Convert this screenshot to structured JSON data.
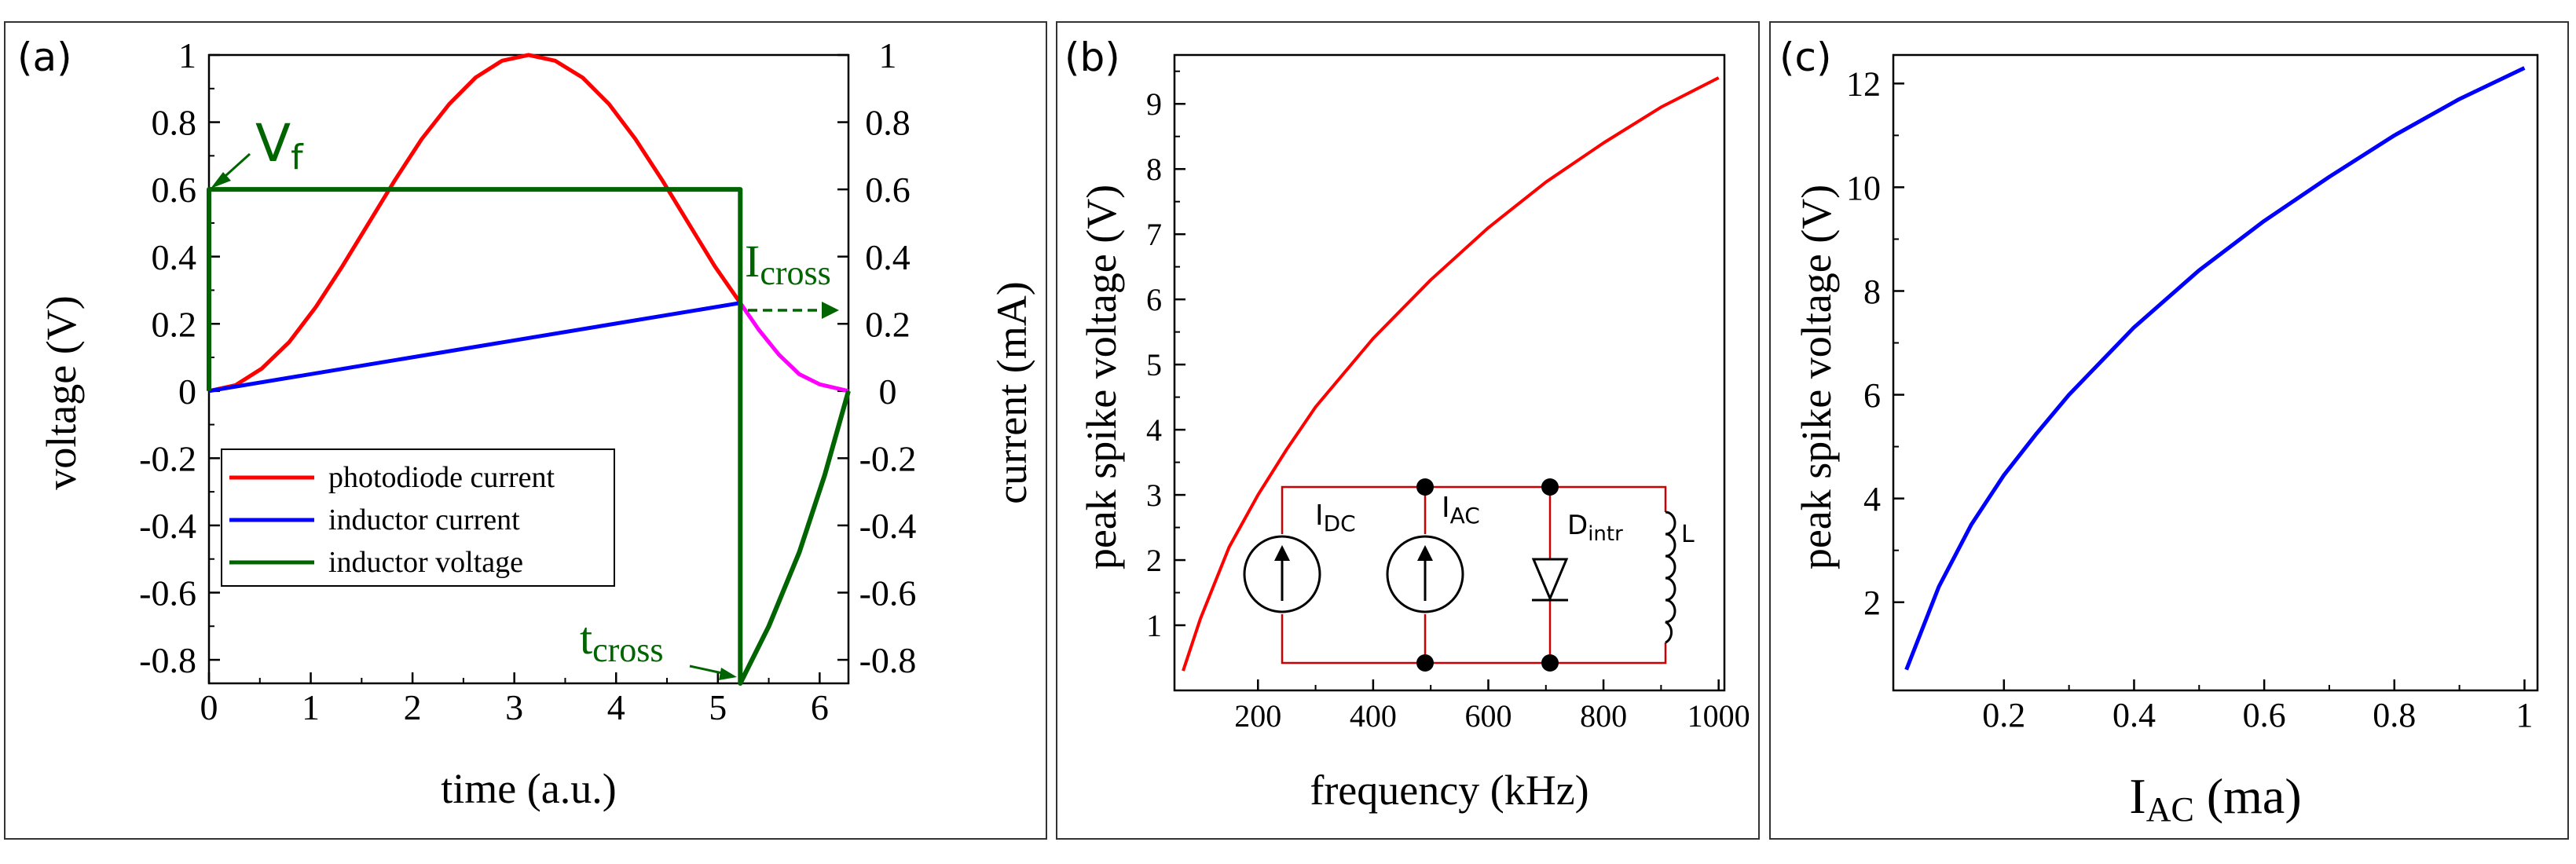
{
  "colors": {
    "photodiode": "#ff0000",
    "inductor_current": "#0000ff",
    "inductor_voltage": "#006400",
    "tail": "#ff00ff",
    "circuit_wire": "#cc0000",
    "accent_green": "#006400"
  },
  "chart_data": [
    {
      "id": "a",
      "type": "line",
      "panel_label": "(a)",
      "xlabel": "time (a.u.)",
      "ylabel_left": "voltage (V)",
      "ylabel_right": "current (mA)",
      "xlim": [
        0,
        6.283
      ],
      "ylim": [
        -0.87,
        1.0
      ],
      "x_ticks": [
        0,
        1,
        2,
        3,
        4,
        5,
        6
      ],
      "x_tick_labels": [
        "0",
        "1",
        "2",
        "3",
        "4",
        "5",
        "6"
      ],
      "y_ticks": [
        1,
        0.8,
        0.6,
        0.4,
        0.2,
        0,
        -0.2,
        -0.4,
        -0.6,
        -0.8
      ],
      "y_tick_labels": [
        "1",
        "0.8",
        "0.6",
        "0.4",
        "0.2",
        "0",
        "-0.2",
        "-0.4",
        "-0.6",
        "-0.8"
      ],
      "legend_position": "lower-left",
      "legend": [
        "photodiode current",
        "inductor current",
        "inductor voltage"
      ],
      "series": [
        {
          "name": "photodiode current",
          "color_key": "photodiode",
          "x": [
            0,
            0.26,
            0.52,
            0.79,
            1.05,
            1.31,
            1.57,
            1.83,
            2.09,
            2.36,
            2.62,
            2.88,
            3.14,
            3.4,
            3.67,
            3.93,
            4.19,
            4.45,
            4.71,
            4.97,
            5.22
          ],
          "y": [
            0,
            0.017,
            0.067,
            0.146,
            0.25,
            0.371,
            0.5,
            0.629,
            0.75,
            0.854,
            0.933,
            0.983,
            1.0,
            0.983,
            0.933,
            0.854,
            0.75,
            0.629,
            0.5,
            0.371,
            0.262
          ]
        },
        {
          "name": "photodiode current (after crossing)",
          "color_key": "tail",
          "x": [
            5.22,
            5.4,
            5.6,
            5.8,
            6.0,
            6.283
          ],
          "y": [
            0.262,
            0.183,
            0.108,
            0.05,
            0.02,
            0
          ]
        },
        {
          "name": "inductor current",
          "color_key": "inductor_current",
          "x": [
            0,
            5.22
          ],
          "y": [
            0,
            0.262
          ]
        },
        {
          "name": "inductor voltage",
          "color_key": "inductor_voltage",
          "x": [
            0,
            0,
            5.22,
            5.22,
            5.5,
            5.8,
            6.05,
            6.283
          ],
          "y": [
            0,
            0.6,
            0.6,
            -0.87,
            -0.7,
            -0.48,
            -0.25,
            0
          ]
        }
      ],
      "annotations": {
        "vf_main": "V",
        "vf_sub": "f",
        "icross_main": "I",
        "icross_sub": "cross",
        "tcross_main": "t",
        "tcross_sub": "cross"
      }
    },
    {
      "id": "b",
      "type": "line",
      "panel_label": "(b)",
      "xlabel": "frequency (kHz)",
      "ylabel": "peak spike voltage (V)",
      "xlim": [
        55,
        1010
      ],
      "ylim": [
        0,
        9.75
      ],
      "x_ticks": [
        200,
        400,
        600,
        800,
        1000
      ],
      "x_tick_labels": [
        "200",
        "400",
        "600",
        "800",
        "1000"
      ],
      "y_ticks": [
        1,
        2,
        3,
        4,
        5,
        6,
        7,
        8,
        9
      ],
      "y_tick_labels": [
        "1",
        "2",
        "3",
        "4",
        "5",
        "6",
        "7",
        "8",
        "9"
      ],
      "series": [
        {
          "name": "peak spike voltage",
          "color_key": "photodiode",
          "x": [
            70,
            100,
            150,
            200,
            250,
            300,
            400,
            500,
            600,
            700,
            800,
            900,
            1000
          ],
          "y": [
            0.3,
            1.1,
            2.2,
            3.0,
            3.7,
            4.35,
            5.4,
            6.3,
            7.1,
            7.8,
            8.4,
            8.95,
            9.4
          ]
        }
      ],
      "inset": {
        "idc_main": "I",
        "idc_sub": "DC",
        "iac_main": "I",
        "iac_sub": "AC",
        "dintr_main": "D",
        "dintr_sub": "intr",
        "l_label": "L"
      }
    },
    {
      "id": "c",
      "type": "line",
      "panel_label": "(c)",
      "xlabel_main": "I",
      "xlabel_sub": "AC",
      "xlabel_rest": " (ma)",
      "ylabel": "peak spike voltage (V)",
      "xlim": [
        0.03,
        1.02
      ],
      "ylim": [
        0.3,
        12.55
      ],
      "x_ticks": [
        0.2,
        0.4,
        0.6,
        0.8,
        1
      ],
      "x_tick_labels": [
        "0.2",
        "0.4",
        "0.6",
        "0.8",
        "1"
      ],
      "y_ticks": [
        2,
        4,
        6,
        8,
        10,
        12
      ],
      "y_tick_labels": [
        "2",
        "4",
        "6",
        "8",
        "10",
        "12"
      ],
      "series": [
        {
          "name": "peak spike voltage",
          "color_key": "inductor_current",
          "x": [
            0.05,
            0.1,
            0.15,
            0.2,
            0.25,
            0.3,
            0.4,
            0.5,
            0.6,
            0.7,
            0.8,
            0.9,
            1.0
          ],
          "y": [
            0.7,
            2.3,
            3.5,
            4.45,
            5.25,
            6.0,
            7.3,
            8.4,
            9.35,
            10.2,
            11.0,
            11.7,
            12.3
          ]
        }
      ]
    }
  ]
}
